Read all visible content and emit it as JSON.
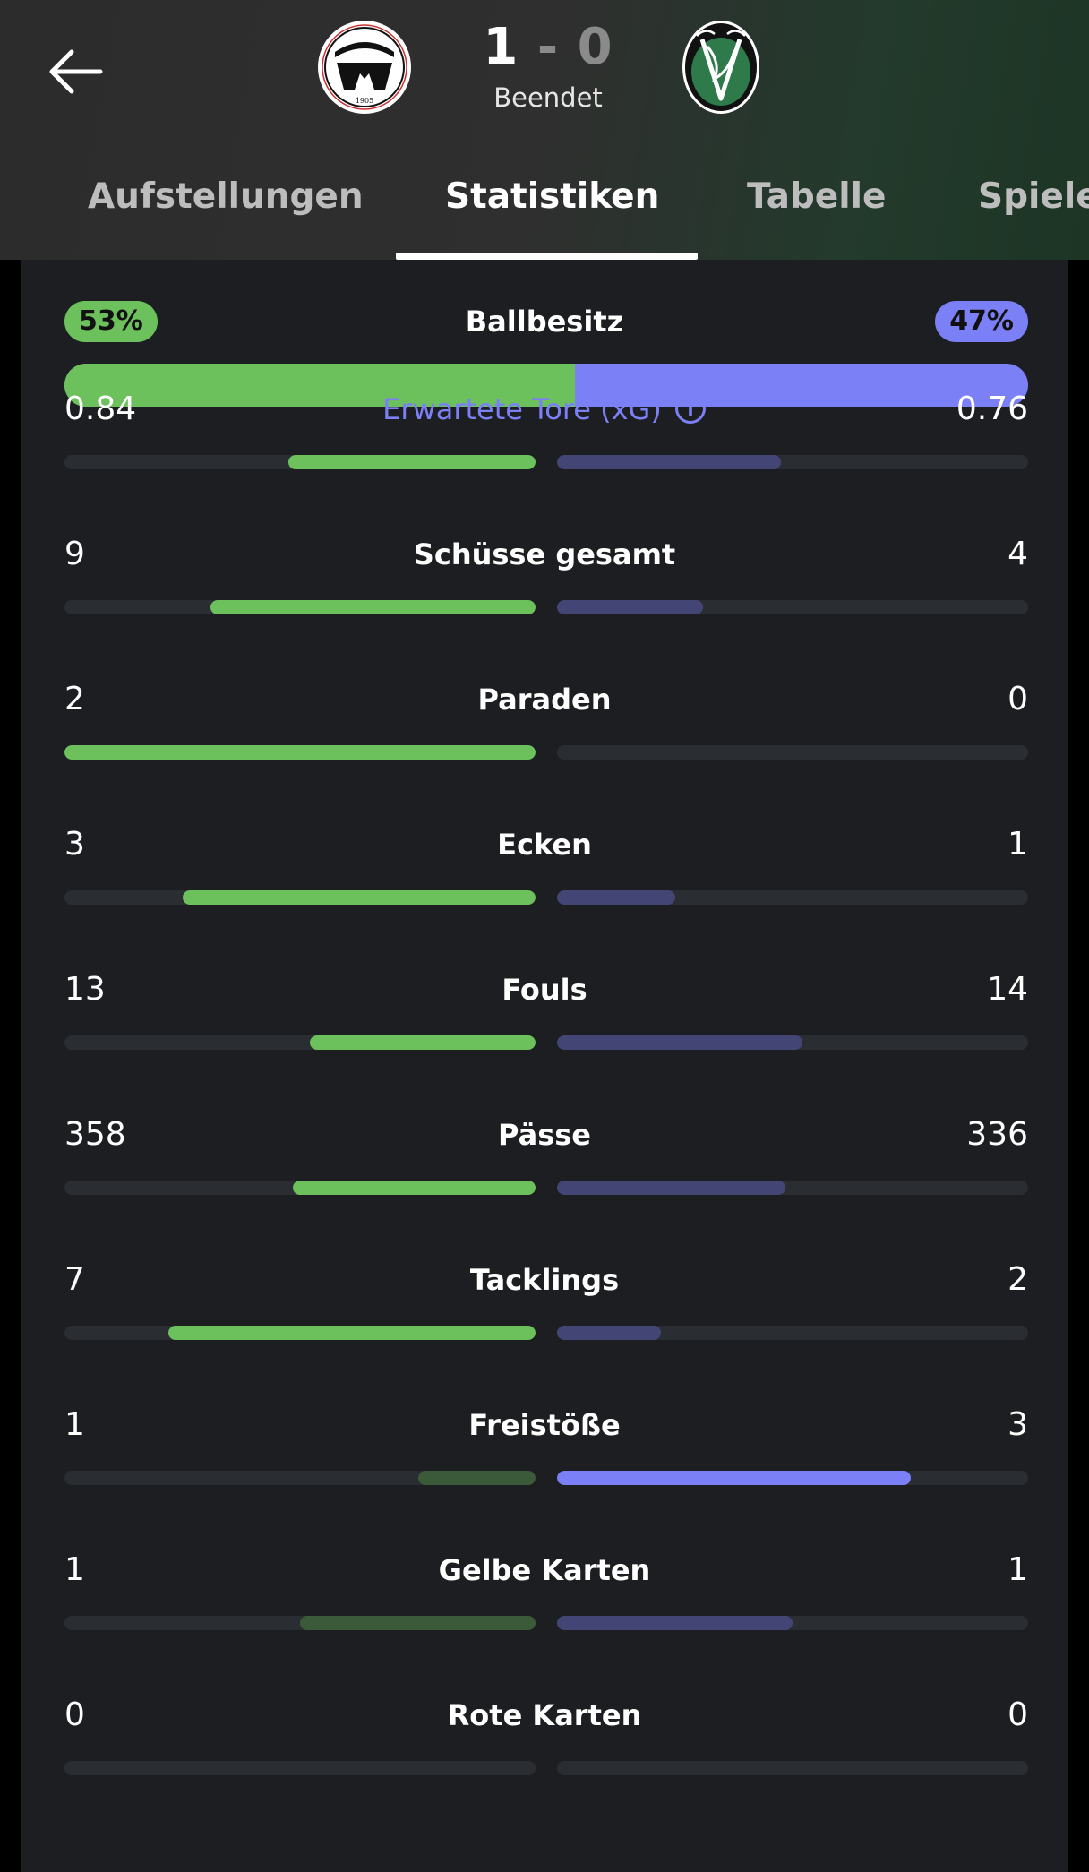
{
  "header": {
    "home_goals": "1",
    "separator": "-",
    "away_goals": "0",
    "status": "Beendet",
    "home_crest_year": "1905",
    "home_crest_icon": "home-team-crest-icon",
    "away_crest_icon": "away-team-crest-icon",
    "back_icon": "back-arrow-icon"
  },
  "tabs": [
    {
      "label": "Aufstellungen"
    },
    {
      "label": "Statistiken"
    },
    {
      "label": "Tabelle"
    },
    {
      "label": "Spiele"
    }
  ],
  "colors": {
    "home": "#6cc15d",
    "away": "#7b80f7"
  },
  "possession": {
    "label": "Ballbesitz",
    "home": "53%",
    "away": "47%",
    "home_fraction": 0.53
  },
  "stats": [
    {
      "label": "Erwartete Tore (xG)",
      "home": "0.84",
      "away": "0.76",
      "home_fill": 0.525,
      "away_fill": 0.475,
      "home_leads": true,
      "info": true
    },
    {
      "label": "Schüsse gesamt",
      "home": "9",
      "away": "4",
      "home_fill": 0.69,
      "away_fill": 0.31,
      "home_leads": true
    },
    {
      "label": "Paraden",
      "home": "2",
      "away": "0",
      "home_fill": 1.0,
      "away_fill": 0.0,
      "home_leads": true
    },
    {
      "label": "Ecken",
      "home": "3",
      "away": "1",
      "home_fill": 0.75,
      "away_fill": 0.25,
      "home_leads": true
    },
    {
      "label": "Fouls",
      "home": "13",
      "away": "14",
      "home_fill": 0.48,
      "away_fill": 0.52,
      "home_leads": true
    },
    {
      "label": "Pässe",
      "home": "358",
      "away": "336",
      "home_fill": 0.515,
      "away_fill": 0.485,
      "home_leads": true
    },
    {
      "label": "Tacklings",
      "home": "7",
      "away": "2",
      "home_fill": 0.78,
      "away_fill": 0.22,
      "home_leads": true
    },
    {
      "label": "Freistöße",
      "home": "1",
      "away": "3",
      "home_fill": 0.25,
      "away_fill": 0.75,
      "home_leads": false
    },
    {
      "label": "Gelbe Karten",
      "home": "1",
      "away": "1",
      "home_fill": 0.5,
      "away_fill": 0.5,
      "home_leads": false,
      "tie": true
    },
    {
      "label": "Rote Karten",
      "home": "0",
      "away": "0",
      "home_fill": 0.0,
      "away_fill": 0.0,
      "home_leads": false,
      "tie": true
    }
  ]
}
